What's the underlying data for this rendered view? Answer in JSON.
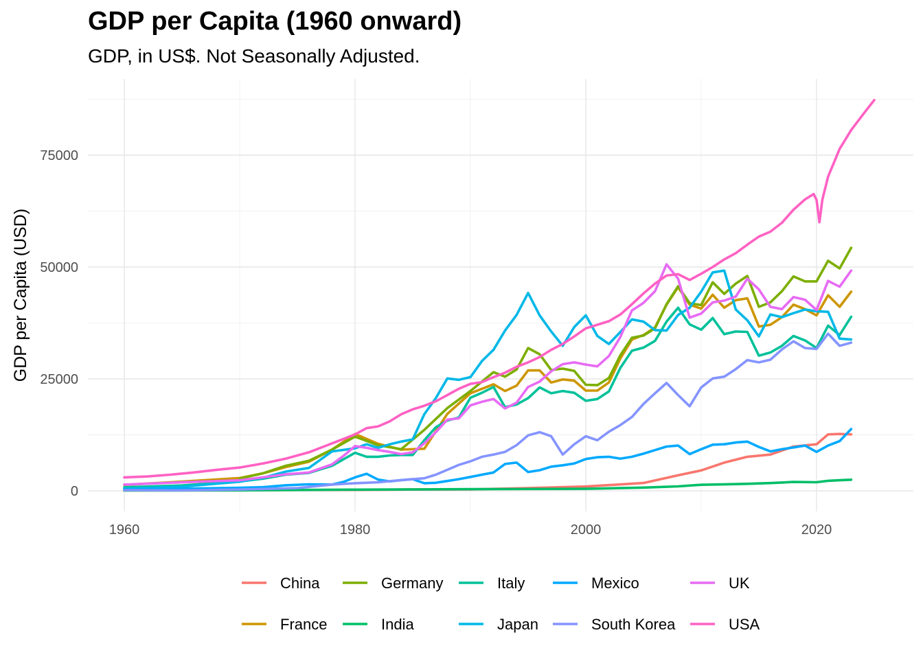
{
  "chart_data": {
    "type": "line",
    "title": "GDP per Capita (1960 onward)",
    "subtitle": "GDP, in US$. Not Seasonally Adjusted.",
    "xlabel": "",
    "ylabel": "GDP per Capita (USD)",
    "xlim": [
      1960,
      2025
    ],
    "ylim": [
      0,
      87000
    ],
    "x_ticks": [
      1960,
      1980,
      2000,
      2020
    ],
    "y_ticks": [
      0,
      25000,
      50000,
      75000
    ],
    "grid": true,
    "legend_position": "bottom",
    "series": [
      {
        "name": "China",
        "color": "#F8766D",
        "x": [
          1960,
          1965,
          1970,
          1975,
          1980,
          1985,
          1990,
          1995,
          2000,
          2005,
          2008,
          2010,
          2012,
          2014,
          2016,
          2018,
          2020,
          2021,
          2022,
          2023
        ],
        "y": [
          90,
          100,
          113,
          178,
          195,
          294,
          318,
          610,
          959,
          1753,
          3468,
          4550,
          6300,
          7600,
          8100,
          9900,
          10400,
          12600,
          12700,
          12600
        ]
      },
      {
        "name": "France",
        "color": "#CD9600",
        "x": [
          1960,
          1965,
          1970,
          1972,
          1974,
          1976,
          1978,
          1980,
          1982,
          1984,
          1986,
          1988,
          1990,
          1992,
          1993,
          1994,
          1995,
          1996,
          1997,
          1998,
          1999,
          2000,
          2001,
          2002,
          2003,
          2004,
          2005,
          2006,
          2007,
          2008,
          2009,
          2010,
          2011,
          2012,
          2013,
          2014,
          2015,
          2016,
          2017,
          2018,
          2019,
          2020,
          2021,
          2022,
          2023
        ],
        "y": [
          1340,
          2050,
          2860,
          3900,
          5300,
          6500,
          9200,
          12700,
          10500,
          9200,
          9400,
          17200,
          21800,
          23800,
          22300,
          23500,
          26900,
          26900,
          24200,
          24900,
          24600,
          22400,
          22400,
          24200,
          29600,
          33800,
          34800,
          36500,
          41600,
          45500,
          41600,
          40700,
          43800,
          40900,
          42600,
          43000,
          36700,
          37100,
          38800,
          41600,
          40600,
          39200,
          43700,
          41100,
          44500
        ]
      },
      {
        "name": "Germany",
        "color": "#7CAE00",
        "x": [
          1970,
          1972,
          1974,
          1976,
          1978,
          1980,
          1982,
          1984,
          1986,
          1988,
          1990,
          1992,
          1993,
          1994,
          1995,
          1996,
          1997,
          1998,
          1999,
          2000,
          2001,
          2002,
          2003,
          2004,
          2005,
          2006,
          2007,
          2008,
          2009,
          2010,
          2011,
          2012,
          2013,
          2014,
          2015,
          2016,
          2017,
          2018,
          2019,
          2020,
          2021,
          2022,
          2023
        ],
        "y": [
          2750,
          3900,
          5600,
          6700,
          9200,
          12100,
          10200,
          9300,
          13600,
          18500,
          22300,
          26500,
          25500,
          27100,
          31900,
          30500,
          27000,
          27300,
          26800,
          23700,
          23600,
          25200,
          30300,
          34200,
          34700,
          36300,
          41700,
          45700,
          41900,
          41500,
          46600,
          44000,
          46300,
          48000,
          41100,
          42100,
          44600,
          47900,
          46800,
          46800,
          51400,
          49700,
          54300
        ]
      },
      {
        "name": "India",
        "color": "#00BE67",
        "x": [
          1960,
          1970,
          1980,
          1990,
          2000,
          2005,
          2008,
          2010,
          2012,
          2014,
          2016,
          2018,
          2020,
          2021,
          2022,
          2023
        ],
        "y": [
          82,
          112,
          267,
          368,
          443,
          714,
          991,
          1350,
          1435,
          1560,
          1730,
          1974,
          1913,
          2238,
          2367,
          2481
        ]
      },
      {
        "name": "Italy",
        "color": "#00C19A",
        "x": [
          1960,
          1965,
          1970,
          1972,
          1974,
          1976,
          1978,
          1980,
          1981,
          1982,
          1983,
          1984,
          1985,
          1986,
          1987,
          1988,
          1989,
          1990,
          1991,
          1992,
          1993,
          1994,
          1995,
          1996,
          1997,
          1998,
          1999,
          2000,
          2001,
          2002,
          2003,
          2004,
          2005,
          2006,
          2007,
          2008,
          2009,
          2010,
          2011,
          2012,
          2013,
          2014,
          2015,
          2016,
          2017,
          2018,
          2019,
          2020,
          2021,
          2022,
          2023
        ],
        "y": [
          800,
          1200,
          2100,
          2700,
          3600,
          4000,
          5600,
          8500,
          7600,
          7600,
          7900,
          8000,
          8000,
          11300,
          14200,
          15700,
          16400,
          20800,
          21900,
          23200,
          18700,
          19300,
          20700,
          23100,
          21800,
          22300,
          21900,
          20100,
          20500,
          22200,
          27500,
          31300,
          32000,
          33500,
          37800,
          40900,
          37200,
          36000,
          38600,
          35000,
          35600,
          35500,
          30200,
          30900,
          32400,
          34600,
          33600,
          31900,
          36900,
          34800,
          38900
        ]
      },
      {
        "name": "Japan",
        "color": "#00B8E7",
        "x": [
          1960,
          1965,
          1970,
          1972,
          1974,
          1976,
          1978,
          1980,
          1981,
          1982,
          1983,
          1984,
          1985,
          1986,
          1987,
          1988,
          1989,
          1990,
          1991,
          1992,
          1993,
          1994,
          1995,
          1996,
          1997,
          1998,
          1999,
          2000,
          2001,
          2002,
          2003,
          2004,
          2005,
          2006,
          2007,
          2008,
          2009,
          2010,
          2011,
          2012,
          2013,
          2014,
          2015,
          2016,
          2017,
          2018,
          2019,
          2020,
          2021,
          2022,
          2023
        ],
        "y": [
          480,
          920,
          2040,
          2900,
          4300,
          5100,
          8800,
          9500,
          10400,
          9600,
          10400,
          11000,
          11500,
          17100,
          20700,
          25100,
          24800,
          25400,
          29000,
          31500,
          35800,
          39300,
          44200,
          39200,
          35600,
          32400,
          36600,
          39200,
          34600,
          32800,
          35500,
          38300,
          37800,
          35900,
          35800,
          39300,
          40900,
          44500,
          48800,
          49200,
          40500,
          38100,
          34500,
          39400,
          38800,
          39700,
          40500,
          40100,
          40000,
          34000,
          33800
        ]
      },
      {
        "name": "Mexico",
        "color": "#00A9FF",
        "x": [
          1960,
          1965,
          1970,
          1972,
          1974,
          1976,
          1978,
          1979,
          1980,
          1981,
          1982,
          1983,
          1984,
          1985,
          1986,
          1987,
          1988,
          1989,
          1990,
          1991,
          1992,
          1993,
          1994,
          1995,
          1996,
          1997,
          1998,
          1999,
          2000,
          2001,
          2002,
          2003,
          2004,
          2005,
          2006,
          2007,
          2008,
          2009,
          2010,
          2011,
          2012,
          2013,
          2014,
          2015,
          2016,
          2017,
          2018,
          2019,
          2020,
          2021,
          2022,
          2023
        ],
        "y": [
          340,
          480,
          690,
          820,
          1240,
          1460,
          1400,
          2000,
          3000,
          3800,
          2500,
          2100,
          2400,
          2600,
          1700,
          1800,
          2200,
          2600,
          3100,
          3600,
          4100,
          6000,
          6300,
          4200,
          4600,
          5400,
          5700,
          6100,
          7100,
          7500,
          7600,
          7200,
          7600,
          8300,
          9100,
          9900,
          10100,
          8200,
          9300,
          10300,
          10400,
          10800,
          11000,
          9800,
          8800,
          9300,
          9700,
          10100,
          8700,
          10100,
          11100,
          13800
        ]
      },
      {
        "name": "South Korea",
        "color": "#8494FF",
        "x": [
          1960,
          1965,
          1970,
          1975,
          1978,
          1980,
          1982,
          1984,
          1986,
          1987,
          1988,
          1989,
          1990,
          1991,
          1992,
          1993,
          1994,
          1995,
          1996,
          1997,
          1998,
          1999,
          2000,
          2001,
          2002,
          2003,
          2004,
          2005,
          2006,
          2007,
          2008,
          2009,
          2010,
          2011,
          2012,
          2013,
          2014,
          2015,
          2016,
          2017,
          2018,
          2019,
          2020,
          2021,
          2022,
          2023
        ],
        "y": [
          160,
          110,
          280,
          620,
          1400,
          1710,
          1900,
          2400,
          2800,
          3600,
          4700,
          5800,
          6600,
          7600,
          8100,
          8700,
          10200,
          12400,
          13100,
          12200,
          8100,
          10400,
          12200,
          11300,
          13200,
          14700,
          16500,
          19400,
          21800,
          24100,
          21400,
          18900,
          23100,
          25100,
          25500,
          27200,
          29200,
          28700,
          29300,
          31600,
          33400,
          31900,
          31700,
          35100,
          32400,
          33100
        ]
      },
      {
        "name": "UK",
        "color": "#E76BF3",
        "x": [
          1960,
          1965,
          1970,
          1972,
          1974,
          1976,
          1978,
          1979,
          1980,
          1981,
          1982,
          1983,
          1984,
          1985,
          1986,
          1987,
          1988,
          1989,
          1990,
          1991,
          1992,
          1993,
          1994,
          1995,
          1996,
          1997,
          1998,
          1999,
          2000,
          2001,
          2002,
          2003,
          2004,
          2005,
          2006,
          2007,
          2008,
          2009,
          2010,
          2011,
          2012,
          2013,
          2014,
          2015,
          2016,
          2017,
          2018,
          2019,
          2020,
          2021,
          2022,
          2023
        ],
        "y": [
          1400,
          1900,
          2350,
          3000,
          3700,
          4100,
          5900,
          7800,
          10000,
          9600,
          9100,
          8700,
          8200,
          8600,
          10600,
          13100,
          15900,
          16200,
          19100,
          19900,
          20500,
          18400,
          19700,
          23200,
          24400,
          26700,
          28300,
          28700,
          28200,
          27800,
          30100,
          34400,
          40300,
          42000,
          44600,
          50600,
          47400,
          38700,
          39600,
          42100,
          42500,
          43400,
          47400,
          45000,
          41100,
          40600,
          43300,
          42700,
          40400,
          46900,
          45600,
          49200
        ]
      },
      {
        "name": "USA",
        "color": "#FF61C3",
        "x": [
          1960,
          1962,
          1964,
          1966,
          1968,
          1970,
          1972,
          1974,
          1976,
          1978,
          1980,
          1981,
          1982,
          1983,
          1984,
          1985,
          1986,
          1987,
          1988,
          1989,
          1990,
          1991,
          1992,
          1993,
          1994,
          1995,
          1996,
          1997,
          1998,
          1999,
          2000,
          2001,
          2002,
          2003,
          2004,
          2005,
          2006,
          2007,
          2008,
          2009,
          2010,
          2011,
          2012,
          2013,
          2014,
          2015,
          2016,
          2017,
          2018,
          2019,
          2019.75,
          2020,
          2020.25,
          2020.5,
          2021,
          2022,
          2023,
          2024,
          2025
        ],
        "y": [
          3000,
          3200,
          3600,
          4100,
          4700,
          5200,
          6100,
          7200,
          8600,
          10600,
          12600,
          14000,
          14400,
          15500,
          17100,
          18200,
          19000,
          20000,
          21400,
          22800,
          23900,
          24300,
          25400,
          26400,
          27700,
          28700,
          29900,
          31500,
          32800,
          34500,
          36300,
          37100,
          37900,
          39400,
          41700,
          44100,
          46300,
          48100,
          48400,
          47100,
          48500,
          50000,
          51700,
          53100,
          55000,
          56800,
          57900,
          59900,
          62800,
          65100,
          66300,
          65000,
          60000,
          65000,
          70200,
          76400,
          80600,
          84000,
          87300
        ]
      }
    ]
  }
}
